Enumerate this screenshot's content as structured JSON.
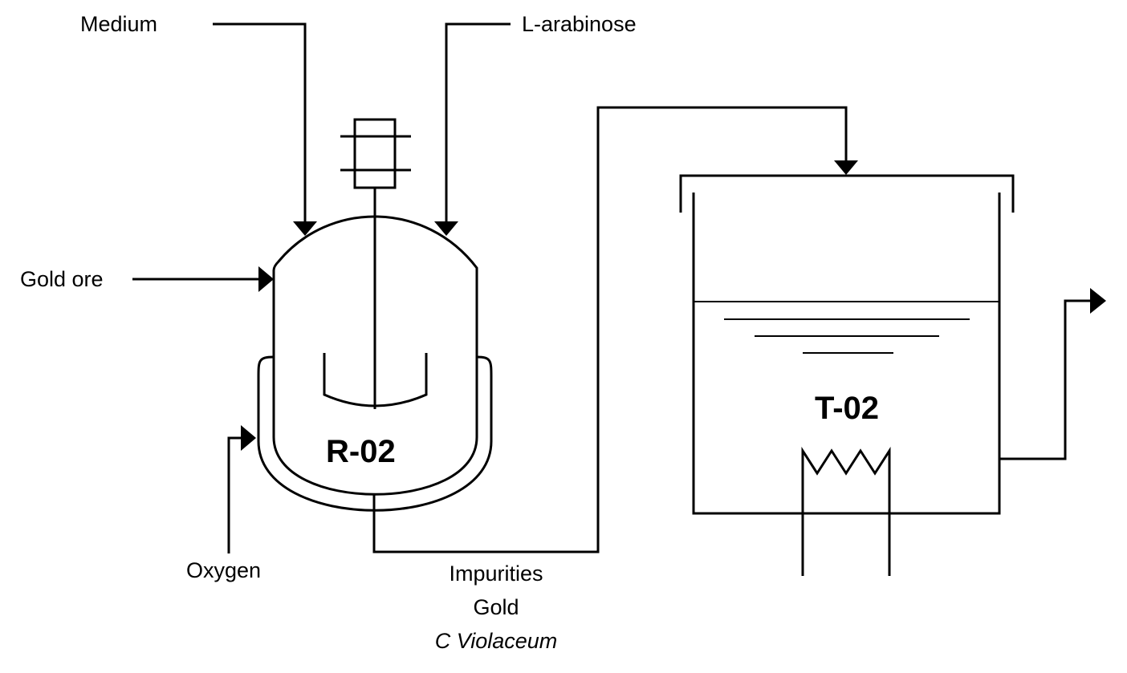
{
  "labels": {
    "medium": "Medium",
    "l_arabinose": "L-arabinose",
    "gold_ore": "Gold ore",
    "oxygen": "Oxygen",
    "impurities": "Impurities",
    "gold": "Gold",
    "c_violaceum": "C Violaceum"
  },
  "equipment": {
    "reactor": "R-02",
    "tank": "T-02"
  }
}
